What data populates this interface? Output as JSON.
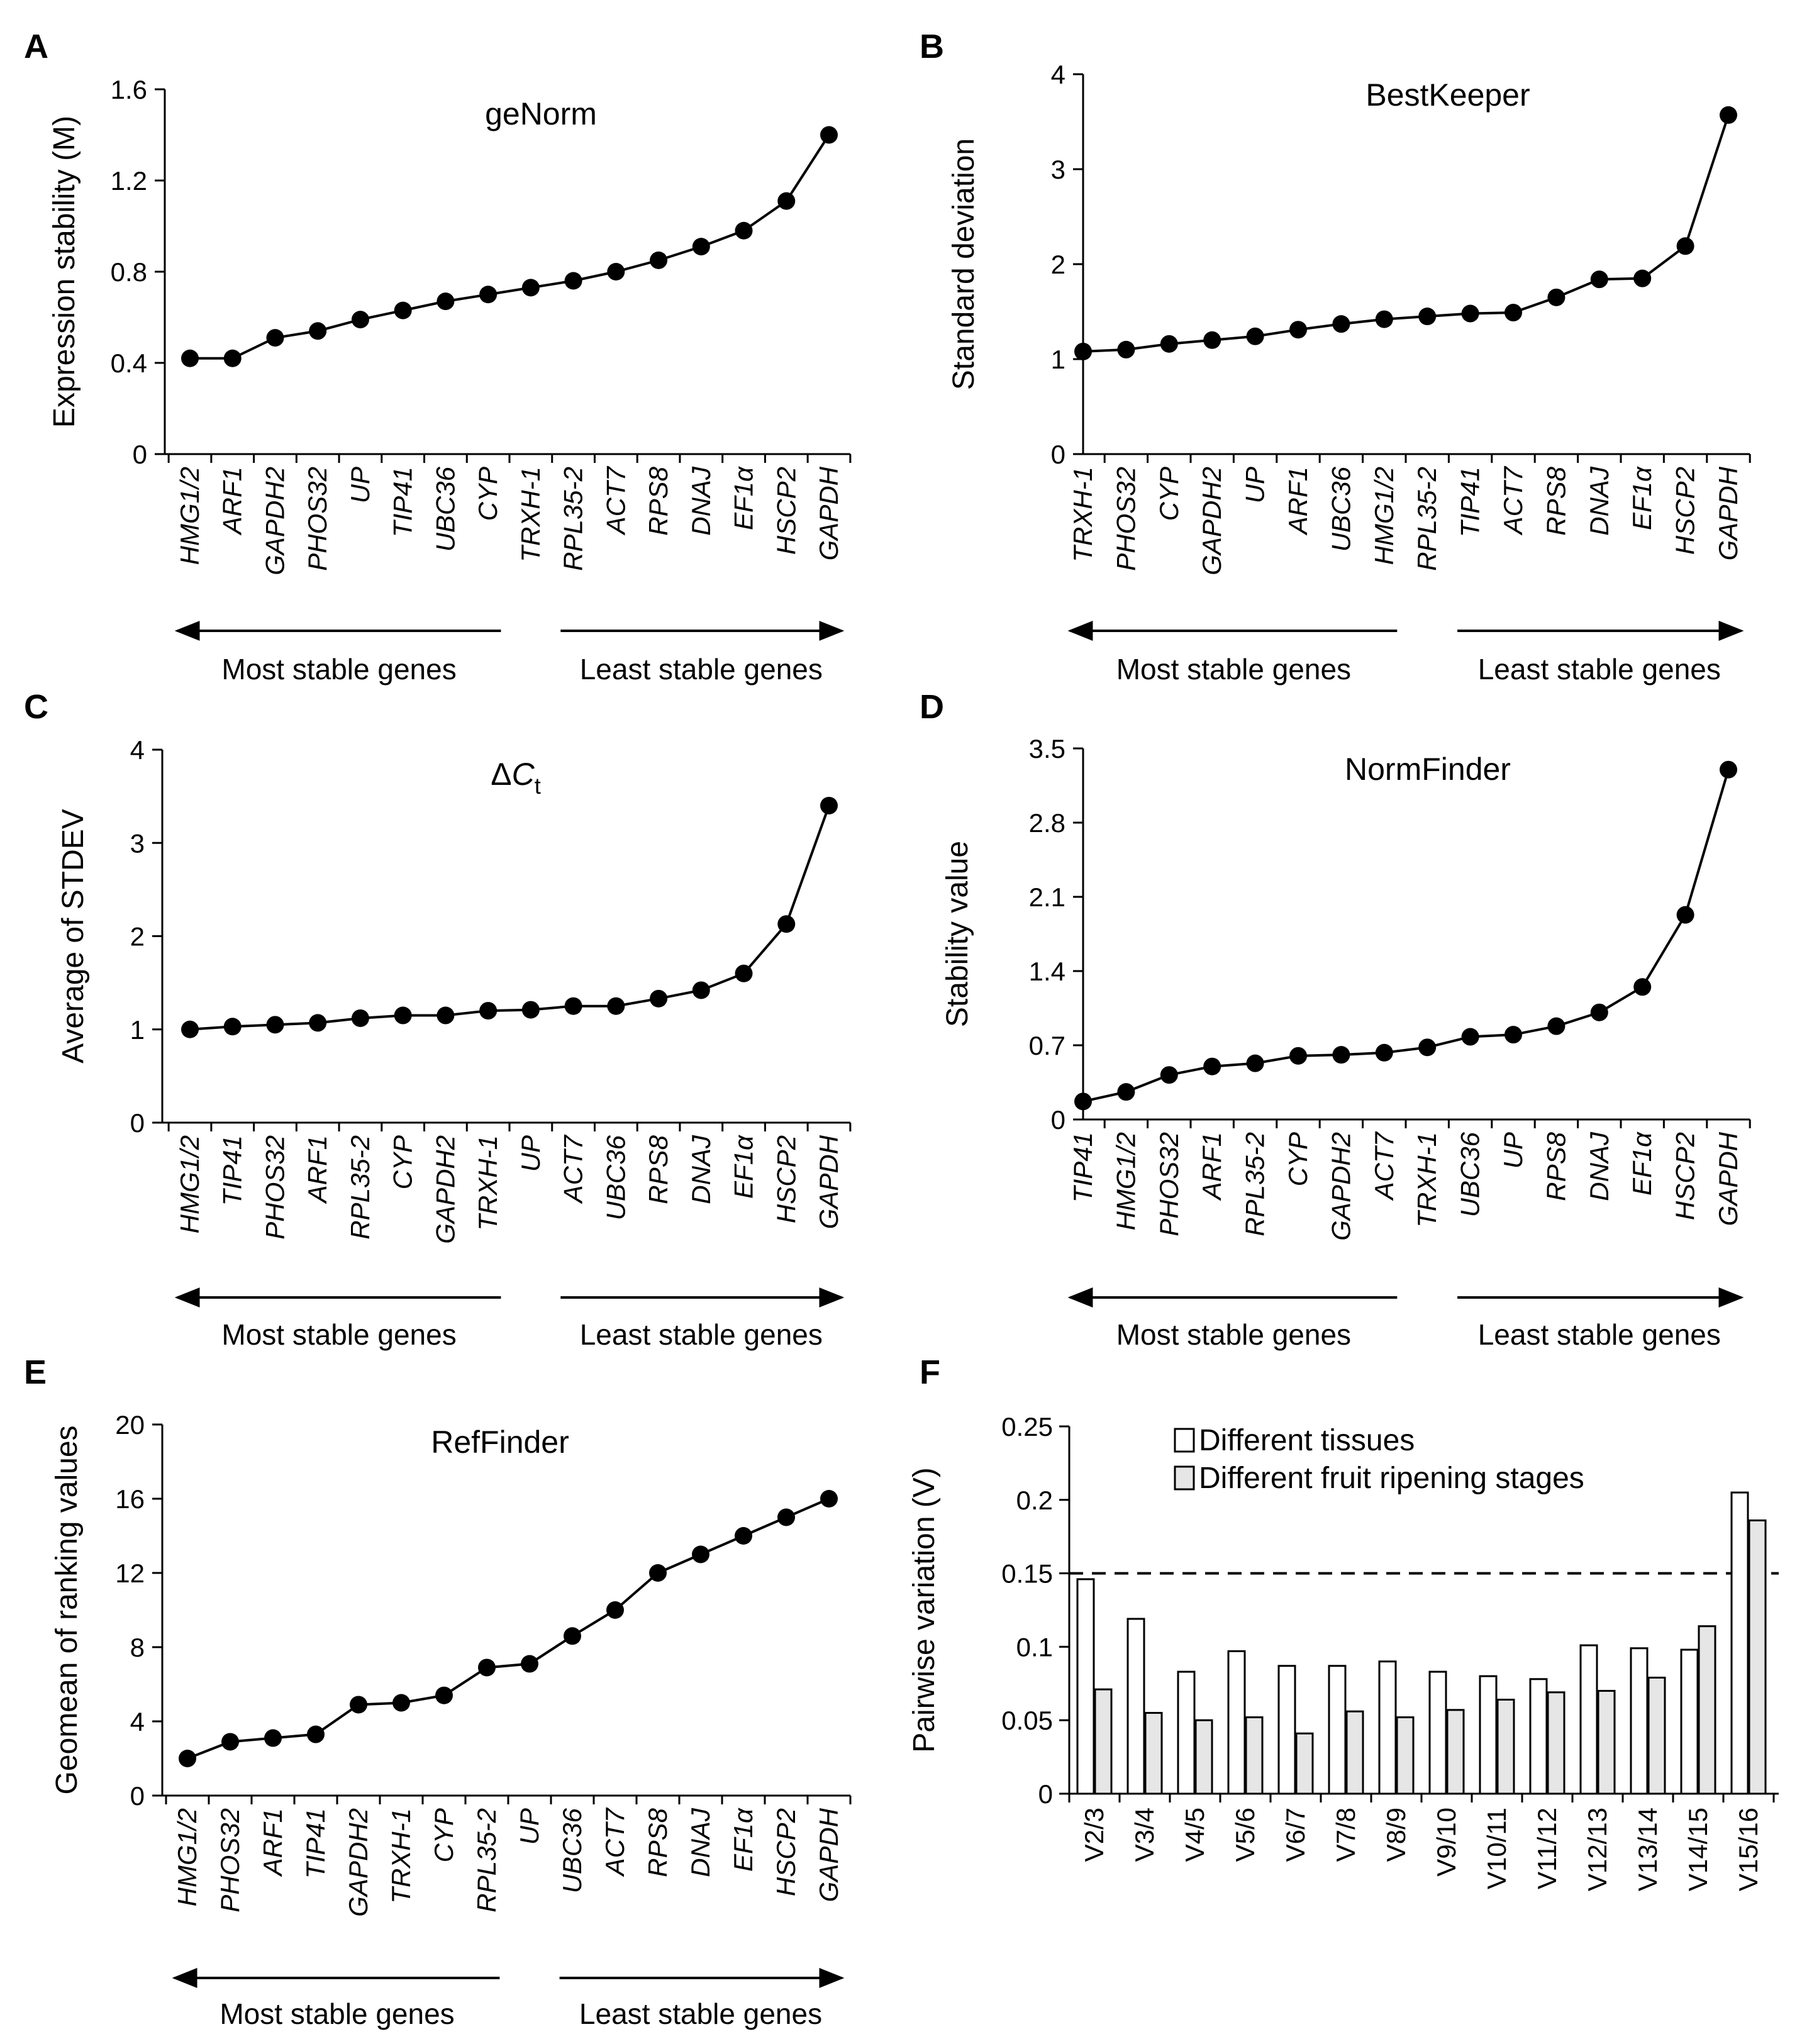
{
  "figure": {
    "arrow_left_label": "Most stable genes",
    "arrow_right_label": "Least stable genes"
  },
  "chart_data": [
    {
      "panel": "A",
      "type": "line",
      "title": "geNorm",
      "ylabel": "Expression stability (M)",
      "xlabel": "",
      "ylim": [
        0,
        1.6
      ],
      "yticks": [
        "0",
        "0.4",
        "0.8",
        "1.2",
        "1.6"
      ],
      "categories": [
        "HMG1/2",
        "ARF1",
        "GAPDH2",
        "PHOS32",
        "UP",
        "TIP41",
        "UBC36",
        "CYP",
        "TRXH-1",
        "RPL35-2",
        "ACT7",
        "RPS8",
        "DNAJ",
        "EF1α",
        "HSCP2",
        "GAPDH"
      ],
      "values": [
        0.42,
        0.42,
        0.51,
        0.54,
        0.59,
        0.63,
        0.67,
        0.7,
        0.73,
        0.76,
        0.8,
        0.85,
        0.91,
        0.98,
        1.11,
        1.4
      ]
    },
    {
      "panel": "B",
      "type": "line",
      "title": "BestKeeper",
      "ylabel": "Standard deviation",
      "xlabel": "",
      "ylim": [
        0,
        4
      ],
      "yticks": [
        "0",
        "1",
        "2",
        "3",
        "4"
      ],
      "categories": [
        "TRXH-1",
        "PHOS32",
        "CYP",
        "GAPDH2",
        "UP",
        "ARF1",
        "UBC36",
        "HMG1/2",
        "RPL35-2",
        "TIP41",
        "ACT7",
        "RPS8",
        "DNAJ",
        "EF1α",
        "HSCP2",
        "GAPDH"
      ],
      "values": [
        1.08,
        1.1,
        1.16,
        1.2,
        1.24,
        1.31,
        1.37,
        1.42,
        1.45,
        1.48,
        1.49,
        1.65,
        1.84,
        1.85,
        2.19,
        3.57
      ]
    },
    {
      "panel": "C",
      "type": "line",
      "title_main": "ΔC",
      "title_sub": "t",
      "ylabel": "Average of STDEV",
      "xlabel": "",
      "ylim": [
        0,
        4
      ],
      "yticks": [
        "0",
        "1",
        "2",
        "3",
        "4"
      ],
      "categories": [
        "HMG1/2",
        "TIP41",
        "PHOS32",
        "ARF1",
        "RPL35-2",
        "CYP",
        "GAPDH2",
        "TRXH-1",
        "UP",
        "ACT7",
        "UBC36",
        "RPS8",
        "DNAJ",
        "EF1α",
        "HSCP2",
        "GAPDH"
      ],
      "values": [
        1.0,
        1.03,
        1.05,
        1.07,
        1.12,
        1.15,
        1.15,
        1.2,
        1.21,
        1.25,
        1.25,
        1.33,
        1.42,
        1.6,
        2.13,
        3.4
      ]
    },
    {
      "panel": "D",
      "type": "line",
      "title": "NormFinder",
      "ylabel": "Stability value",
      "xlabel": "",
      "ylim": [
        0,
        3.5
      ],
      "yticks": [
        "0",
        "0.7",
        "1.4",
        "2.1",
        "2.8",
        "3.5"
      ],
      "categories": [
        "TIP41",
        "HMG1/2",
        "PHOS32",
        "ARF1",
        "RPL35-2",
        "CYP",
        "GAPDH2",
        "ACT7",
        "TRXH-1",
        "UBC36",
        "UP",
        "RPS8",
        "DNAJ",
        "EF1α",
        "HSCP2",
        "GAPDH"
      ],
      "values": [
        0.17,
        0.26,
        0.42,
        0.5,
        0.53,
        0.6,
        0.61,
        0.63,
        0.68,
        0.78,
        0.8,
        0.88,
        1.01,
        1.25,
        1.93,
        3.3
      ]
    },
    {
      "panel": "E",
      "type": "line",
      "title": "RefFinder",
      "ylabel": "Geomean of ranking values",
      "xlabel": "",
      "ylim": [
        0,
        20
      ],
      "yticks": [
        "0",
        "4",
        "8",
        "12",
        "16",
        "20"
      ],
      "categories": [
        "HMG1/2",
        "PHOS32",
        "ARF1",
        "TIP41",
        "GAPDH2",
        "TRXH-1",
        "CYP",
        "RPL35-2",
        "UP",
        "UBC36",
        "ACT7",
        "RPS8",
        "DNAJ",
        "EF1α",
        "HSCP2",
        "GAPDH"
      ],
      "values": [
        2.0,
        2.9,
        3.1,
        3.3,
        4.9,
        5.0,
        5.4,
        6.9,
        7.1,
        8.6,
        10.0,
        12.0,
        13.0,
        14.0,
        15.0,
        16.0
      ]
    },
    {
      "panel": "F",
      "type": "bar",
      "title": "",
      "ylabel": "Pairwise variation (V)",
      "xlabel": "",
      "ylim": [
        0,
        0.25
      ],
      "yticks": [
        "0",
        "0.05",
        "0.1",
        "0.15",
        "0.2",
        "0.25"
      ],
      "threshold": 0.15,
      "categories": [
        "V2/3",
        "V3/4",
        "V4/5",
        "V5/6",
        "V6/7",
        "V7/8",
        "V8/9",
        "V9/10",
        "V10/11",
        "V11/12",
        "V12/13",
        "V13/14",
        "V14/15",
        "V15/16"
      ],
      "series": [
        {
          "name": "Different tissues",
          "color": "#ffffff",
          "values": [
            0.146,
            0.119,
            0.083,
            0.097,
            0.087,
            0.087,
            0.09,
            0.083,
            0.08,
            0.078,
            0.101,
            0.099,
            0.098,
            0.205
          ]
        },
        {
          "name": "Different fruit ripening stages",
          "color": "#e6e6e6",
          "values": [
            0.071,
            0.055,
            0.05,
            0.052,
            0.041,
            0.056,
            0.052,
            0.057,
            0.064,
            0.069,
            0.07,
            0.079,
            0.114,
            0.186
          ]
        }
      ],
      "legend_position": "top"
    }
  ]
}
